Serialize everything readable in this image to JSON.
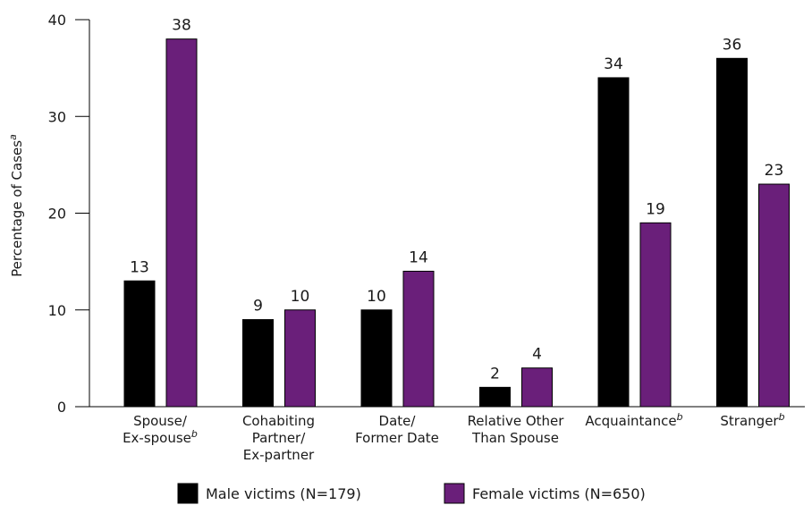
{
  "chart_data": {
    "type": "bar",
    "title": "",
    "ylabel": "Percentage of Cases",
    "ylabel_sup": "a",
    "ylim": [
      0,
      40
    ],
    "yticks": [
      0,
      10,
      20,
      30,
      40
    ],
    "categories": [
      {
        "lines": [
          "Spouse/",
          "Ex-spouse"
        ],
        "sup": "b"
      },
      {
        "lines": [
          "Cohabiting",
          "Partner/",
          "Ex-partner"
        ],
        "sup": ""
      },
      {
        "lines": [
          "Date/",
          "Former Date"
        ],
        "sup": ""
      },
      {
        "lines": [
          "Relative Other",
          "Than Spouse"
        ],
        "sup": ""
      },
      {
        "lines": [
          "Acquaintance"
        ],
        "sup": "b"
      },
      {
        "lines": [
          "Stranger"
        ],
        "sup": "b"
      }
    ],
    "series": [
      {
        "name": "Male victims (N=179)",
        "color": "#000000",
        "values": [
          13,
          9,
          10,
          2,
          34,
          36
        ]
      },
      {
        "name": "Female victims (N=650)",
        "color": "#6a1f7a",
        "values": [
          38,
          10,
          14,
          4,
          19,
          23
        ]
      }
    ],
    "legend_position": "bottom",
    "grid": false
  }
}
